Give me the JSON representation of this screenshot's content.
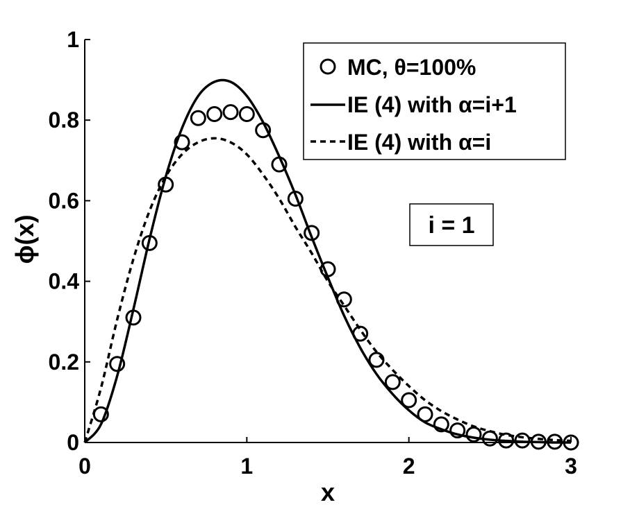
{
  "chart_data": {
    "type": "line",
    "xlabel": "x",
    "ylabel": "ϕ(x)",
    "xlim": [
      0,
      3
    ],
    "ylim": [
      0,
      1
    ],
    "x_ticks": [
      0,
      1,
      2,
      3
    ],
    "y_ticks": [
      0,
      0.2,
      0.4,
      0.6,
      0.8,
      1
    ],
    "x_tick_labels": [
      "0",
      "1",
      "2",
      "3"
    ],
    "y_tick_labels": [
      "0",
      "0.2",
      "0.4",
      "0.6",
      "0.8",
      "1"
    ],
    "grid": false,
    "legend_position": "top-right",
    "annotation": "i = 1",
    "series": [
      {
        "name": "MC, θ=100%",
        "style": "markers-circle",
        "x": [
          0.1,
          0.2,
          0.3,
          0.4,
          0.5,
          0.6,
          0.7,
          0.8,
          0.9,
          1.0,
          1.1,
          1.2,
          1.3,
          1.4,
          1.5,
          1.6,
          1.7,
          1.8,
          1.9,
          2.0,
          2.1,
          2.2,
          2.3,
          2.4,
          2.5,
          2.6,
          2.7,
          2.8,
          2.9,
          3.0
        ],
        "y": [
          0.07,
          0.195,
          0.31,
          0.495,
          0.64,
          0.745,
          0.805,
          0.815,
          0.82,
          0.815,
          0.775,
          0.69,
          0.605,
          0.52,
          0.43,
          0.355,
          0.27,
          0.205,
          0.15,
          0.105,
          0.07,
          0.045,
          0.03,
          0.02,
          0.01,
          0.005,
          0.005,
          0.002,
          0.002,
          0.0
        ]
      },
      {
        "name": "IE (4) with α=i+1",
        "style": "solid",
        "x": [
          0.0,
          0.1,
          0.2,
          0.3,
          0.4,
          0.5,
          0.6,
          0.7,
          0.8,
          0.9,
          1.0,
          1.1,
          1.2,
          1.3,
          1.4,
          1.5,
          1.6,
          1.7,
          1.8,
          1.9,
          2.0,
          2.1,
          2.2,
          2.3,
          2.4,
          2.5,
          2.6,
          2.7,
          2.8,
          2.9,
          3.0
        ],
        "y": [
          0.0,
          0.045,
          0.165,
          0.33,
          0.505,
          0.66,
          0.78,
          0.86,
          0.895,
          0.895,
          0.86,
          0.795,
          0.71,
          0.615,
          0.51,
          0.41,
          0.315,
          0.235,
          0.17,
          0.12,
          0.08,
          0.05,
          0.033,
          0.02,
          0.012,
          0.007,
          0.004,
          0.002,
          0.001,
          0.0,
          0.0
        ]
      },
      {
        "name": "IE (4) with α=i",
        "style": "dashed",
        "x": [
          0.0,
          0.1,
          0.2,
          0.3,
          0.4,
          0.5,
          0.6,
          0.7,
          0.8,
          0.9,
          1.0,
          1.1,
          1.2,
          1.3,
          1.4,
          1.5,
          1.6,
          1.7,
          1.8,
          1.9,
          2.0,
          2.1,
          2.2,
          2.3,
          2.4,
          2.5,
          2.6,
          2.7,
          2.8,
          2.9,
          3.0
        ],
        "y": [
          0.0,
          0.135,
          0.305,
          0.455,
          0.575,
          0.66,
          0.715,
          0.745,
          0.755,
          0.745,
          0.715,
          0.665,
          0.605,
          0.535,
          0.47,
          0.4,
          0.34,
          0.28,
          0.225,
          0.18,
          0.14,
          0.105,
          0.078,
          0.057,
          0.04,
          0.028,
          0.019,
          0.013,
          0.009,
          0.006,
          0.004
        ]
      }
    ]
  }
}
